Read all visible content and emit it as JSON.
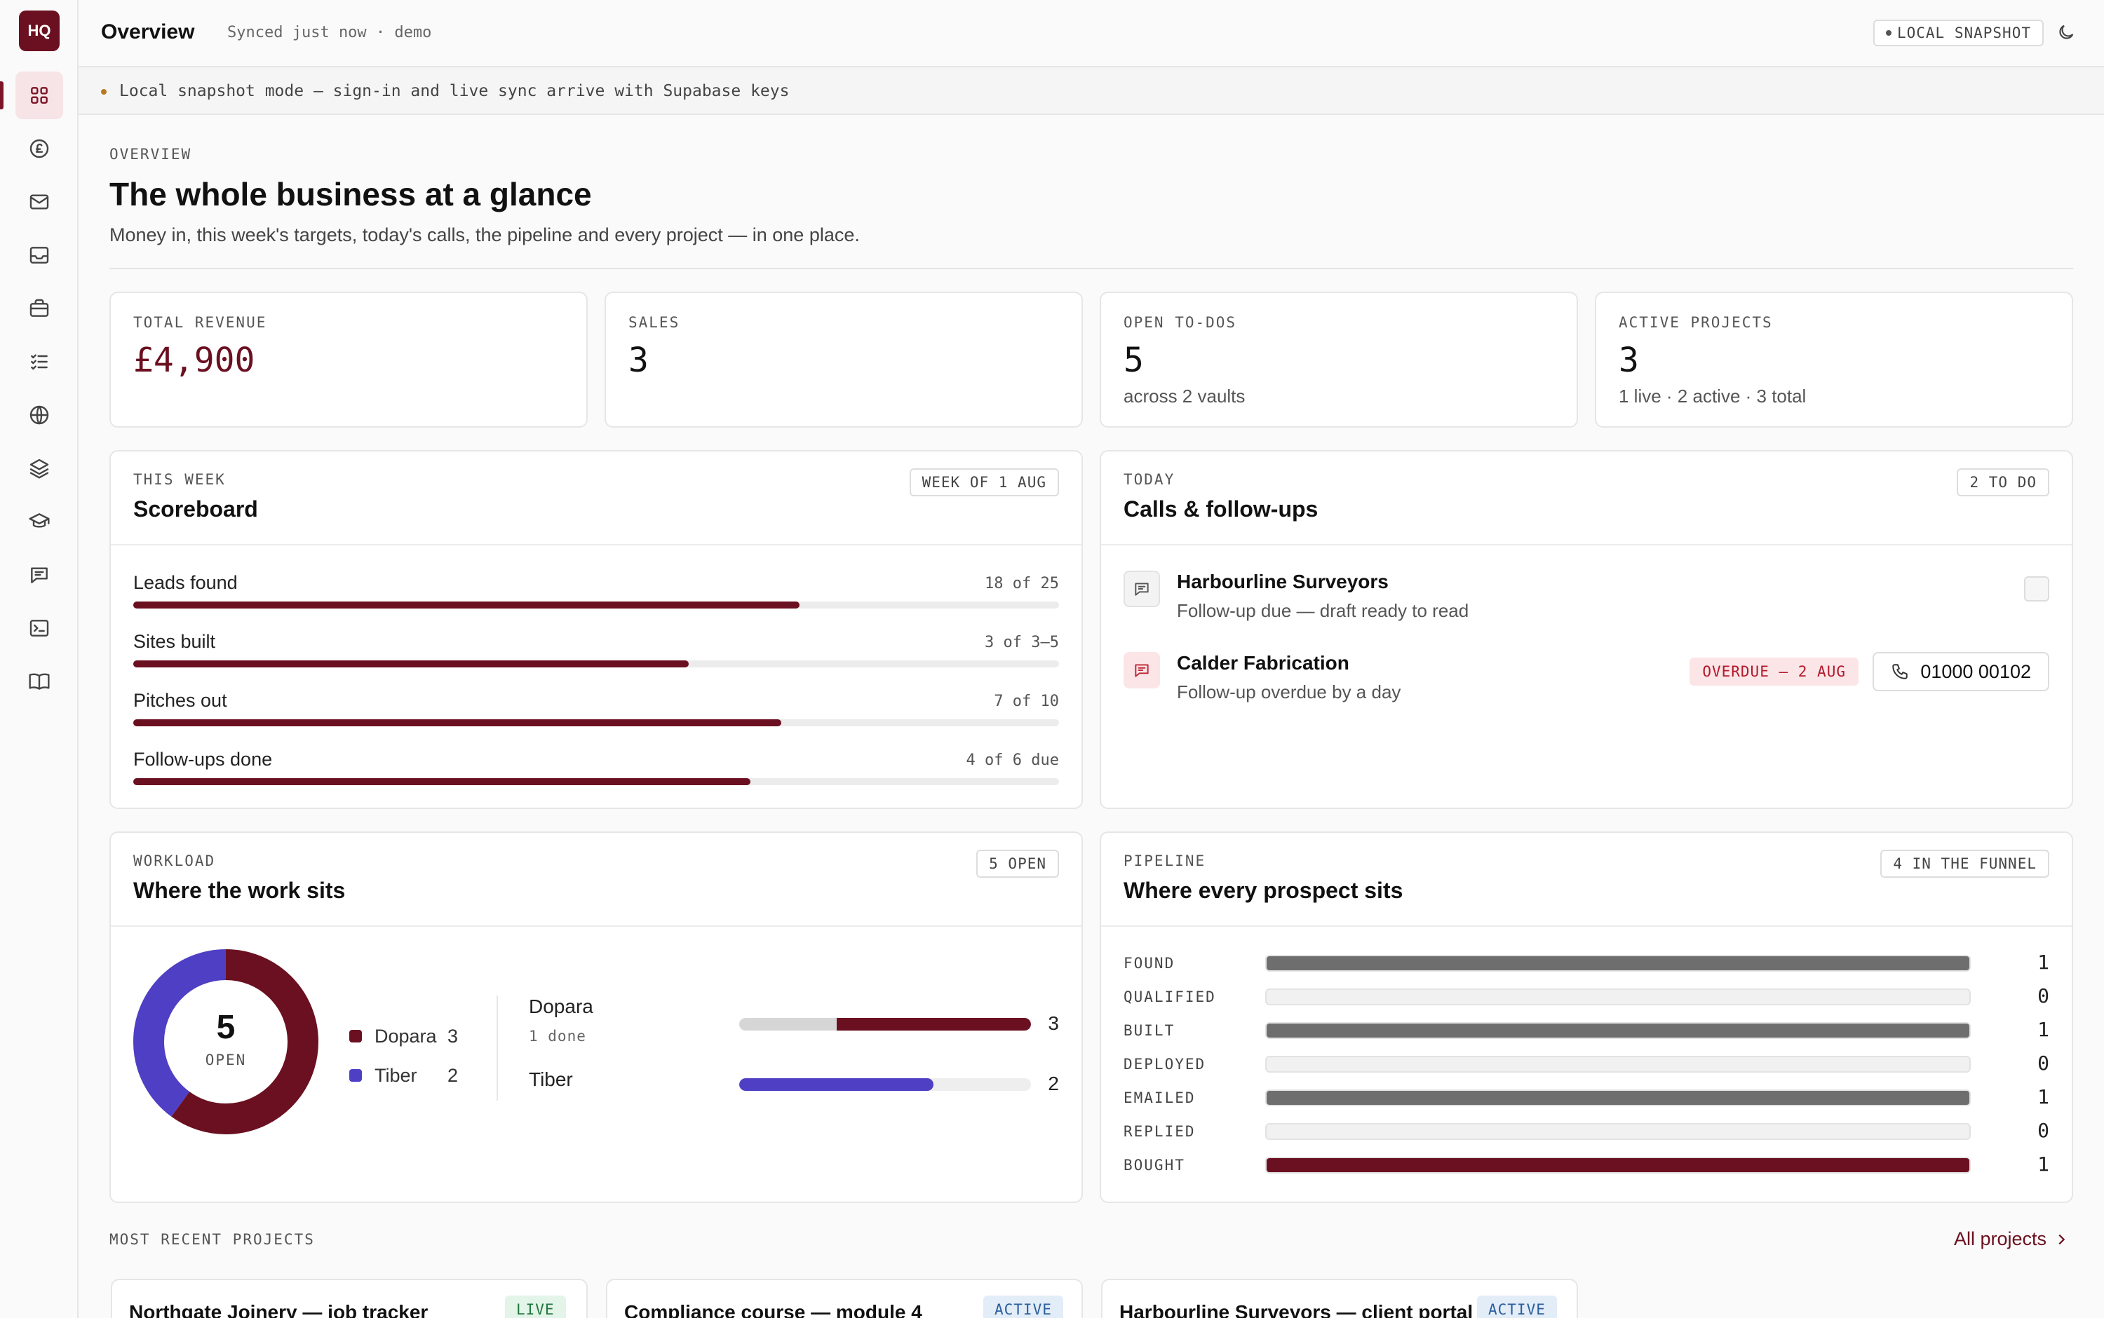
{
  "app": {
    "logo": "HQ"
  },
  "sidebar": {
    "items": [
      {
        "icon": "grid-icon",
        "active": true
      },
      {
        "icon": "pound-icon"
      },
      {
        "icon": "mail-icon"
      },
      {
        "icon": "inbox-icon"
      },
      {
        "icon": "briefcase-icon"
      },
      {
        "icon": "checklist-icon"
      },
      {
        "icon": "globe-icon"
      },
      {
        "icon": "layers-icon"
      },
      {
        "icon": "graduation-cap-icon"
      },
      {
        "icon": "chat-icon"
      },
      {
        "icon": "terminal-icon"
      },
      {
        "icon": "book-icon"
      }
    ]
  },
  "header": {
    "title": "Overview",
    "sync_status": "Synced just now · demo",
    "snapshot_badge": "LOCAL SNAPSHOT",
    "theme_icon": "moon-icon"
  },
  "banner": {
    "text": "Local snapshot mode — sign-in and live sync arrive with Supabase keys"
  },
  "intro": {
    "eyebrow": "OVERVIEW",
    "title": "The whole business at a glance",
    "subtitle": "Money in, this week's targets, today's calls, the pipeline and every project — in one place."
  },
  "stats": [
    {
      "label": "TOTAL REVENUE",
      "value": "£4,900",
      "sub": ""
    },
    {
      "label": "SALES",
      "value": "3",
      "sub": ""
    },
    {
      "label": "OPEN TO-DOS",
      "value": "5",
      "sub": "across 2 vaults"
    },
    {
      "label": "ACTIVE PROJECTS",
      "value": "3",
      "sub": "1 live · 2 active · 3 total"
    }
  ],
  "scoreboard": {
    "eyebrow": "THIS WEEK",
    "title": "Scoreboard",
    "chip": "WEEK OF 1 AUG",
    "rows": [
      {
        "label": "Leads found",
        "value": "18 of 25",
        "progress": 0.72
      },
      {
        "label": "Sites built",
        "value": "3 of 3–5",
        "progress": 0.6
      },
      {
        "label": "Pitches out",
        "value": "7 of 10",
        "progress": 0.7
      },
      {
        "label": "Follow-ups done",
        "value": "4 of 6 due",
        "progress": 0.667
      }
    ]
  },
  "calls": {
    "eyebrow": "TODAY",
    "title": "Calls & follow-ups",
    "chip": "2 TO DO",
    "items": [
      {
        "name": "Harbourline Surveyors",
        "note": "Follow-up due — draft ready to read",
        "icon": "chat-icon"
      },
      {
        "name": "Calder Fabrication",
        "note": "Follow-up overdue by a day",
        "icon": "chat-icon",
        "badge": "OVERDUE — 2 AUG",
        "phone": "01000 00102",
        "phone_icon": "phone-icon"
      }
    ]
  },
  "workload": {
    "eyebrow": "WORKLOAD",
    "title": "Where the work sits",
    "chip": "5 OPEN",
    "total": "5",
    "total_label": "OPEN",
    "colors": {
      "dopara": "#6b1020",
      "tiber": "#4f3fc4"
    },
    "vaults": [
      {
        "name": "Dopara",
        "count": "3",
        "done_label": "1 done",
        "done": 1
      },
      {
        "name": "Tiber",
        "count": "2",
        "done_label": "",
        "done": 0
      }
    ]
  },
  "pipeline": {
    "eyebrow": "PIPELINE",
    "title": "Where every prospect sits",
    "chip": "4 IN THE FUNNEL",
    "stages": [
      {
        "label": "FOUND",
        "count": "1"
      },
      {
        "label": "QUALIFIED",
        "count": "0"
      },
      {
        "label": "BUILT",
        "count": "1"
      },
      {
        "label": "DEPLOYED",
        "count": "0"
      },
      {
        "label": "EMAILED",
        "count": "1"
      },
      {
        "label": "REPLIED",
        "count": "0"
      },
      {
        "label": "BOUGHT",
        "count": "1"
      }
    ]
  },
  "recent": {
    "eyebrow": "MOST RECENT PROJECTS",
    "link": "All projects",
    "link_icon": "chevron-right-icon",
    "projects": [
      {
        "title": "Northgate Joinery — job tracker",
        "status": "LIVE"
      },
      {
        "title": "Compliance course — module 4",
        "status": "ACTIVE"
      },
      {
        "title": "Harbourline Surveyors — client portal",
        "status": "ACTIVE"
      }
    ]
  }
}
